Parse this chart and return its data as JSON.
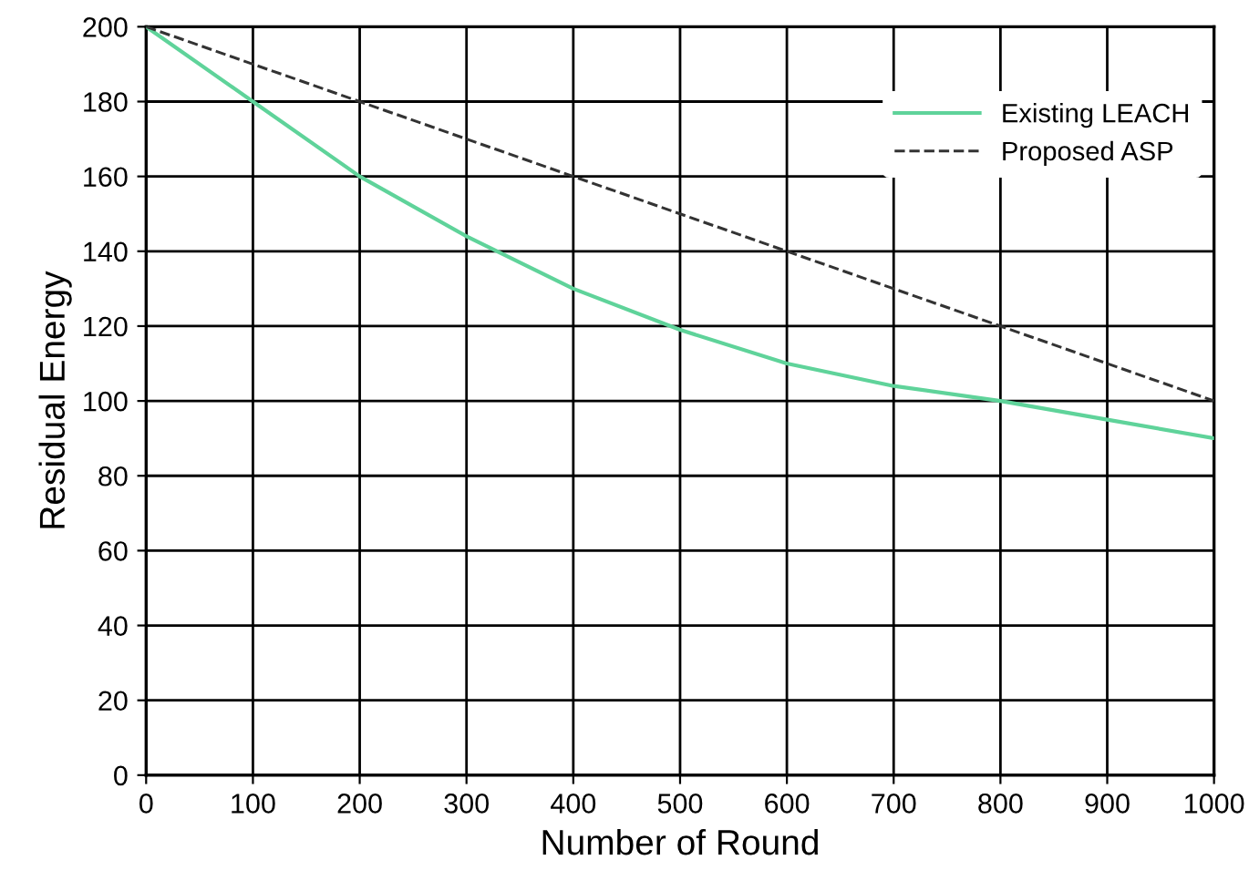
{
  "chart_data": {
    "type": "line",
    "xlabel": "Number of Round",
    "ylabel": "Residual Energy",
    "series": [
      {
        "name": "Existing LEACH",
        "color": "#5fd39a",
        "line_style": "solid",
        "x": [
          0,
          100,
          200,
          300,
          400,
          500,
          600,
          700,
          800,
          900,
          1000
        ],
        "values": [
          200,
          180,
          160,
          144,
          130,
          119,
          110,
          104,
          100,
          95,
          90
        ]
      },
      {
        "name": "Proposed ASP",
        "color": "#333333",
        "line_style": "dashed",
        "x": [
          0,
          1000
        ],
        "values": [
          200,
          100
        ]
      }
    ],
    "xlim": [
      0,
      1000
    ],
    "xticks": [
      0,
      100,
      200,
      300,
      400,
      500,
      600,
      700,
      800,
      900,
      1000
    ],
    "ylim": [
      0,
      200
    ],
    "yticks": [
      0,
      20,
      40,
      60,
      80,
      100,
      120,
      140,
      160,
      180,
      200
    ],
    "grid": true,
    "legend": "top right",
    "marker": "none"
  }
}
